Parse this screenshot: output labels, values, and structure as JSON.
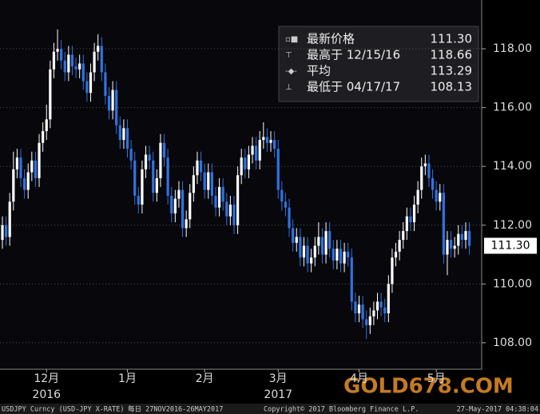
{
  "chart_data": {
    "type": "candlestick",
    "open": [
      111.5,
      112.0,
      111.6,
      112.8,
      113.9,
      114.3,
      113.6,
      113.2,
      113.8,
      114.2,
      113.6,
      114.8,
      115.2,
      115.6,
      117.3,
      117.9,
      118.0,
      117.6,
      117.2,
      117.8,
      117.4,
      117.3,
      117.5,
      116.9,
      116.5,
      117.2,
      117.9,
      118.1,
      117.2,
      116.4,
      115.9,
      116.6,
      115.4,
      114.9,
      115.3,
      114.6,
      114.2,
      113.0,
      112.7,
      113.9,
      114.4,
      114.2,
      113.1,
      113.6,
      114.8,
      114.3,
      113.0,
      112.4,
      112.9,
      113.2,
      111.9,
      112.2,
      113.1,
      113.7,
      114.2,
      113.8,
      113.2,
      113.8,
      113.0,
      112.6,
      113.3,
      112.8,
      112.3,
      112.7,
      112.0,
      113.7,
      114.3,
      113.9,
      114.4,
      114.7,
      114.2,
      114.9,
      115.0,
      114.8,
      114.9,
      114.6,
      113.2,
      112.8,
      112.6,
      111.9,
      111.4,
      111.6,
      110.9,
      111.3,
      110.7,
      110.9,
      111.3,
      111.6,
      111.0,
      111.8,
      111.2,
      110.8,
      111.2,
      110.7,
      111.1,
      110.9,
      109.4,
      109.0,
      109.3,
      108.8,
      108.6,
      108.9,
      109.1,
      109.4,
      109.2,
      109.0,
      110.0,
      110.9,
      111.1,
      111.5,
      111.8,
      112.3,
      112.1,
      112.7,
      113.2,
      114.0,
      114.1,
      113.6,
      113.2,
      112.8,
      113.1,
      111.0,
      111.5,
      111.2,
      111.3,
      111.7,
      111.5,
      111.8
    ],
    "high": [
      112.3,
      112.3,
      113.1,
      114.5,
      114.6,
      114.6,
      113.9,
      114.1,
      114.5,
      114.5,
      115.1,
      115.5,
      116.1,
      117.6,
      118.2,
      118.66,
      118.3,
      117.9,
      118.1,
      118.1,
      117.7,
      117.8,
      117.8,
      117.2,
      117.5,
      118.2,
      118.5,
      118.4,
      117.5,
      116.7,
      116.9,
      116.9,
      115.7,
      115.6,
      115.6,
      114.9,
      114.5,
      113.3,
      114.2,
      114.7,
      114.7,
      114.5,
      113.9,
      115.1,
      115.1,
      114.6,
      113.3,
      113.2,
      113.5,
      113.5,
      112.5,
      113.4,
      114.0,
      114.5,
      114.5,
      114.1,
      114.1,
      114.1,
      113.3,
      113.6,
      113.6,
      113.1,
      113.0,
      113.0,
      114.0,
      114.6,
      114.6,
      114.7,
      115.0,
      115.0,
      115.2,
      115.5,
      115.3,
      115.2,
      115.2,
      114.9,
      113.5,
      113.1,
      112.9,
      112.2,
      111.9,
      111.9,
      111.6,
      111.6,
      111.2,
      111.6,
      112.1,
      111.9,
      112.1,
      112.1,
      111.5,
      111.5,
      111.5,
      111.4,
      111.4,
      111.2,
      109.7,
      109.6,
      109.6,
      109.1,
      109.2,
      109.4,
      109.7,
      109.7,
      109.5,
      110.3,
      111.2,
      111.4,
      111.8,
      112.1,
      112.6,
      112.6,
      113.0,
      113.5,
      114.3,
      114.4,
      114.4,
      113.9,
      113.5,
      113.4,
      113.4,
      111.8,
      111.8,
      111.6,
      112.0,
      112.0,
      112.1,
      112.1
    ],
    "low": [
      111.2,
      111.3,
      111.3,
      112.5,
      113.6,
      113.3,
      112.9,
      112.9,
      113.5,
      113.3,
      113.3,
      114.5,
      114.9,
      115.3,
      117.0,
      117.6,
      117.3,
      116.9,
      116.9,
      117.1,
      117.0,
      117.0,
      116.6,
      116.2,
      116.2,
      116.9,
      117.6,
      116.9,
      116.1,
      115.6,
      115.6,
      115.1,
      114.6,
      114.6,
      114.3,
      113.9,
      112.7,
      112.4,
      112.4,
      113.6,
      113.9,
      112.8,
      112.8,
      113.3,
      114.0,
      112.7,
      112.1,
      112.1,
      112.6,
      111.6,
      111.6,
      111.9,
      112.8,
      113.4,
      113.5,
      112.9,
      112.9,
      112.7,
      112.3,
      112.3,
      112.5,
      112.0,
      112.0,
      111.7,
      111.7,
      113.4,
      113.6,
      113.6,
      114.1,
      113.9,
      113.9,
      114.6,
      114.5,
      114.5,
      114.3,
      112.9,
      112.5,
      112.3,
      111.6,
      111.1,
      111.1,
      110.6,
      110.6,
      110.4,
      110.4,
      110.6,
      111.0,
      110.7,
      110.7,
      110.9,
      110.5,
      110.5,
      110.4,
      110.4,
      110.6,
      109.1,
      108.7,
      108.7,
      108.5,
      108.13,
      108.3,
      108.6,
      108.8,
      108.9,
      108.7,
      108.7,
      109.7,
      110.6,
      110.8,
      111.2,
      111.5,
      111.8,
      111.8,
      112.4,
      112.9,
      113.7,
      113.3,
      112.9,
      112.5,
      112.5,
      110.7,
      110.3,
      110.9,
      110.9,
      111.0,
      111.2,
      111.2,
      111.0
    ],
    "close": [
      112.0,
      111.6,
      112.8,
      113.9,
      114.3,
      113.6,
      113.2,
      113.8,
      114.2,
      113.6,
      114.8,
      115.2,
      115.6,
      117.3,
      117.9,
      118.0,
      117.6,
      117.2,
      117.8,
      117.4,
      117.3,
      117.5,
      116.9,
      116.5,
      117.2,
      117.9,
      118.1,
      117.2,
      116.4,
      115.9,
      116.6,
      115.4,
      114.9,
      115.3,
      114.6,
      114.2,
      113.0,
      112.7,
      113.9,
      114.4,
      114.2,
      113.1,
      113.6,
      114.8,
      114.3,
      113.0,
      112.4,
      112.9,
      113.2,
      111.9,
      112.2,
      113.1,
      113.7,
      114.2,
      113.8,
      113.2,
      113.8,
      113.0,
      112.6,
      113.3,
      112.8,
      112.3,
      112.7,
      112.0,
      113.7,
      114.3,
      113.9,
      114.4,
      114.7,
      114.2,
      114.9,
      115.0,
      114.8,
      114.9,
      114.6,
      113.2,
      112.8,
      112.6,
      111.9,
      111.4,
      111.6,
      110.9,
      111.3,
      110.7,
      110.9,
      111.3,
      111.6,
      111.0,
      111.8,
      111.2,
      110.8,
      111.2,
      110.7,
      111.1,
      110.9,
      109.4,
      109.0,
      109.3,
      108.8,
      108.6,
      108.9,
      109.1,
      109.4,
      109.2,
      109.0,
      110.0,
      110.9,
      111.1,
      111.5,
      111.8,
      112.3,
      112.1,
      112.7,
      113.2,
      114.0,
      114.1,
      113.6,
      113.2,
      112.8,
      113.1,
      111.0,
      111.5,
      111.2,
      111.3,
      111.7,
      111.5,
      111.8,
      111.3
    ],
    "up_color": "#ffffff",
    "down_color": "#2f73e0",
    "ylim": [
      107.1,
      119.66
    ],
    "yticks": [
      {
        "value": 108,
        "label": "108.00"
      },
      {
        "value": 110,
        "label": "110.00"
      },
      {
        "value": 112,
        "label": "112.00"
      },
      {
        "value": 114,
        "label": "114.00"
      },
      {
        "value": 116,
        "label": "116.00"
      },
      {
        "value": 118,
        "label": "118.00"
      }
    ],
    "grid": true,
    "xticks": [
      {
        "value": 12,
        "label": "12月"
      },
      {
        "value": 34,
        "label": "1月"
      },
      {
        "value": 55,
        "label": "2月"
      },
      {
        "value": 75,
        "label": "3月"
      },
      {
        "value": 97,
        "label": "4月"
      },
      {
        "value": 118,
        "label": "5月"
      }
    ],
    "year_labels": [
      {
        "value": 12,
        "label": "2016"
      },
      {
        "value": 75,
        "label": "2017"
      }
    ],
    "last_price": {
      "value": 111.3,
      "label": "111.30"
    },
    "legend": [
      {
        "label": "最新价格",
        "value": "111.30"
      },
      {
        "label": "最高于 12/15/16",
        "value": "118.66"
      },
      {
        "label": "平均",
        "value": "113.29"
      },
      {
        "label": "最低于 04/17/17",
        "value": "108.13"
      }
    ],
    "watermark": "GOLD678.COM",
    "footer": [
      "USDJPY Curncy (USD-JPY X-RATE)",
      "每日 27NOV2016-26MAY2017",
      "Copyright© 2017 Bloomberg Finance L.P.",
      "27-May-2017 04:38:04"
    ]
  }
}
